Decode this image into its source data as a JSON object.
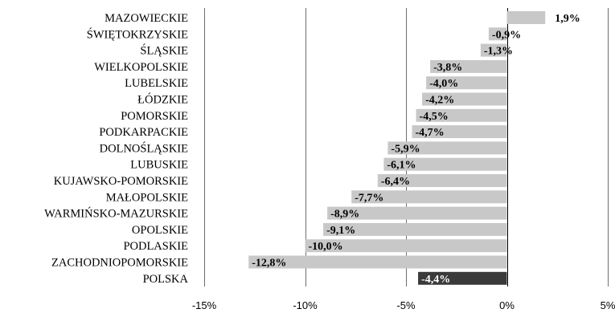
{
  "chart_data": {
    "type": "bar",
    "orientation": "horizontal",
    "categories": [
      "MAZOWIECKIE",
      "ŚWIĘTOKRZYSKIE",
      "ŚLĄSKIE",
      "WIELKOPOLSKIE",
      "LUBELSKIE",
      "ŁÓDZKIE",
      "POMORSKIE",
      "PODKARPACKIE",
      "DOLNOŚLĄSKIE",
      "LUBUSKIE",
      "KUJAWSKO-POMORSKIE",
      "MAŁOPOLSKIE",
      "WARMIŃSKO-MAZURSKIE",
      "OPOLSKIE",
      "PODLASKIE",
      "ZACHODNIOPOMORSKIE",
      "POLSKA"
    ],
    "values": [
      1.9,
      -0.9,
      -1.3,
      -3.8,
      -4.0,
      -4.2,
      -4.5,
      -4.7,
      -5.9,
      -6.1,
      -6.4,
      -7.7,
      -8.9,
      -9.1,
      -10.0,
      -12.8,
      -4.4
    ],
    "value_labels": [
      "1,9%",
      "-0,9%",
      "-1,3%",
      "-3,8%",
      "-4,0%",
      "-4,2%",
      "-4,5%",
      "-4,7%",
      "-5,9%",
      "-6,1%",
      "-6,4%",
      "-7,7%",
      "-8,9%",
      "-9,1%",
      "-10,0%",
      "-12,8%",
      "-4,4%"
    ],
    "highlight_category": "POLSKA",
    "xlim": [
      -15,
      5
    ],
    "xticks": [
      -15,
      -10,
      -5,
      0,
      5
    ],
    "xtick_labels": [
      "-15%",
      "-10%",
      "-5%",
      "0%",
      "5%"
    ],
    "grid": true,
    "title": "",
    "xlabel": "",
    "ylabel": "",
    "colors": {
      "bar": "#c8c8c8",
      "highlight_bar": "#3a3a3a",
      "grid": "#6e6e6e"
    }
  }
}
